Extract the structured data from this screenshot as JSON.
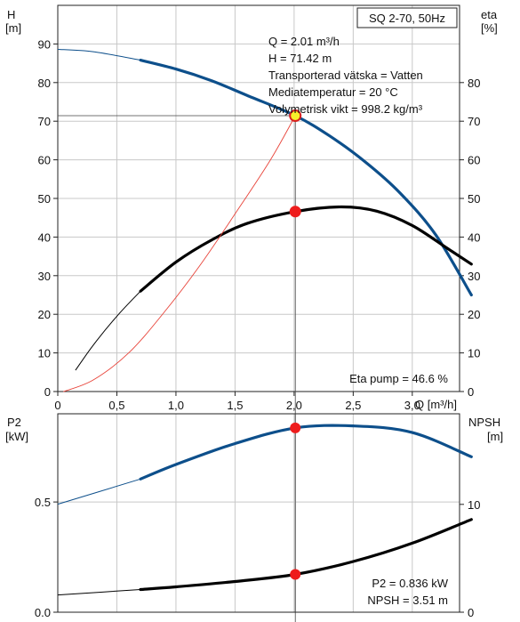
{
  "chart_data": [
    {
      "type": "line",
      "title": "SQ 2-70, 50Hz",
      "x_label": "Q [m³/h]",
      "x_ticks": [
        "0",
        "0,5",
        "1,0",
        "1,5",
        "2,0",
        "2,5",
        "3,0"
      ],
      "xlim": [
        0,
        3.4
      ],
      "left_axis": {
        "label": "H",
        "unit": "[m]",
        "ticks": [
          "0",
          "10",
          "20",
          "30",
          "40",
          "50",
          "60",
          "70",
          "80",
          "90"
        ],
        "ylim": [
          0,
          100
        ]
      },
      "right_axis": {
        "label": "eta",
        "unit": "[%]",
        "ticks": [
          "0",
          "10",
          "20",
          "30",
          "40",
          "50",
          "60",
          "70",
          "80"
        ],
        "ylim": [
          0,
          100
        ]
      },
      "grid": true,
      "series": [
        {
          "curve": "H",
          "color": "#0d4f8b",
          "x": [
            0.0,
            0.3,
            0.7,
            1.0,
            1.3,
            1.6,
            2.01,
            2.3,
            2.6,
            2.9,
            3.2,
            3.5
          ],
          "y": [
            88.6,
            88.0,
            85.8,
            83.5,
            80.5,
            76.7,
            71.42,
            66.2,
            59.5,
            51.3,
            40.5,
            25.0
          ],
          "solid_from": 0.7
        },
        {
          "curve": "eta",
          "color": "#000000",
          "x": [
            0.15,
            0.3,
            0.5,
            0.7,
            1.0,
            1.3,
            1.6,
            2.01,
            2.4,
            2.7,
            3.0,
            3.3,
            3.5
          ],
          "y": [
            5.5,
            12.0,
            19.5,
            26.0,
            33.5,
            39.2,
            43.5,
            46.6,
            47.8,
            46.7,
            43.0,
            37.0,
            33.0
          ],
          "solid_from": 0.7
        },
        {
          "curve": "system",
          "color": "#e8443a",
          "x": [
            0.05,
            0.3,
            0.6,
            0.9,
            1.2,
            1.5,
            1.8,
            2.01
          ],
          "y": [
            0.0,
            3.0,
            10.0,
            20.5,
            32.5,
            46.0,
            60.0,
            71.42
          ]
        }
      ],
      "duty_point": {
        "Q": 2.01,
        "H": 71.42,
        "eta": 46.6
      },
      "annotations": [
        "Q = 2.01 m³/h",
        "H = 71.42 m",
        "Transporterad vätska = Vatten",
        "Mediatemperatur = 20 °C",
        "Volymetrisk vikt = 998.2 kg/m³"
      ],
      "eta_label": "Eta pump = 46.6 %"
    },
    {
      "type": "line",
      "xlim": [
        0,
        3.4
      ],
      "left_axis": {
        "label": "P2",
        "unit": "[kW]",
        "ticks": [
          "0.0",
          "0.5"
        ],
        "ylim": [
          0,
          0.9
        ]
      },
      "right_axis": {
        "label": "NPSH",
        "unit": "[m]",
        "ticks": [
          "0",
          "10"
        ],
        "ylim": [
          0,
          18.4
        ]
      },
      "grid": true,
      "series": [
        {
          "curve": "P2",
          "color": "#0d4f8b",
          "x": [
            0.0,
            0.7,
            1.0,
            1.5,
            2.01,
            2.5,
            3.0,
            3.5
          ],
          "y": [
            0.49,
            0.604,
            0.67,
            0.765,
            0.836,
            0.845,
            0.815,
            0.705
          ],
          "solid_from": 0.7
        },
        {
          "curve": "NPSH",
          "color": "#000000",
          "x": [
            0.0,
            0.7,
            1.0,
            1.5,
            2.01,
            2.5,
            3.0,
            3.5
          ],
          "y": [
            1.6,
            2.1,
            2.35,
            2.85,
            3.51,
            4.7,
            6.4,
            8.6
          ],
          "solid_from": 0.7
        }
      ],
      "duty_point": {
        "Q": 2.01,
        "P2": 0.836,
        "NPSH": 3.51
      },
      "annotations": [
        "P2 = 0.836 kW",
        "NPSH = 3.51 m"
      ]
    }
  ]
}
